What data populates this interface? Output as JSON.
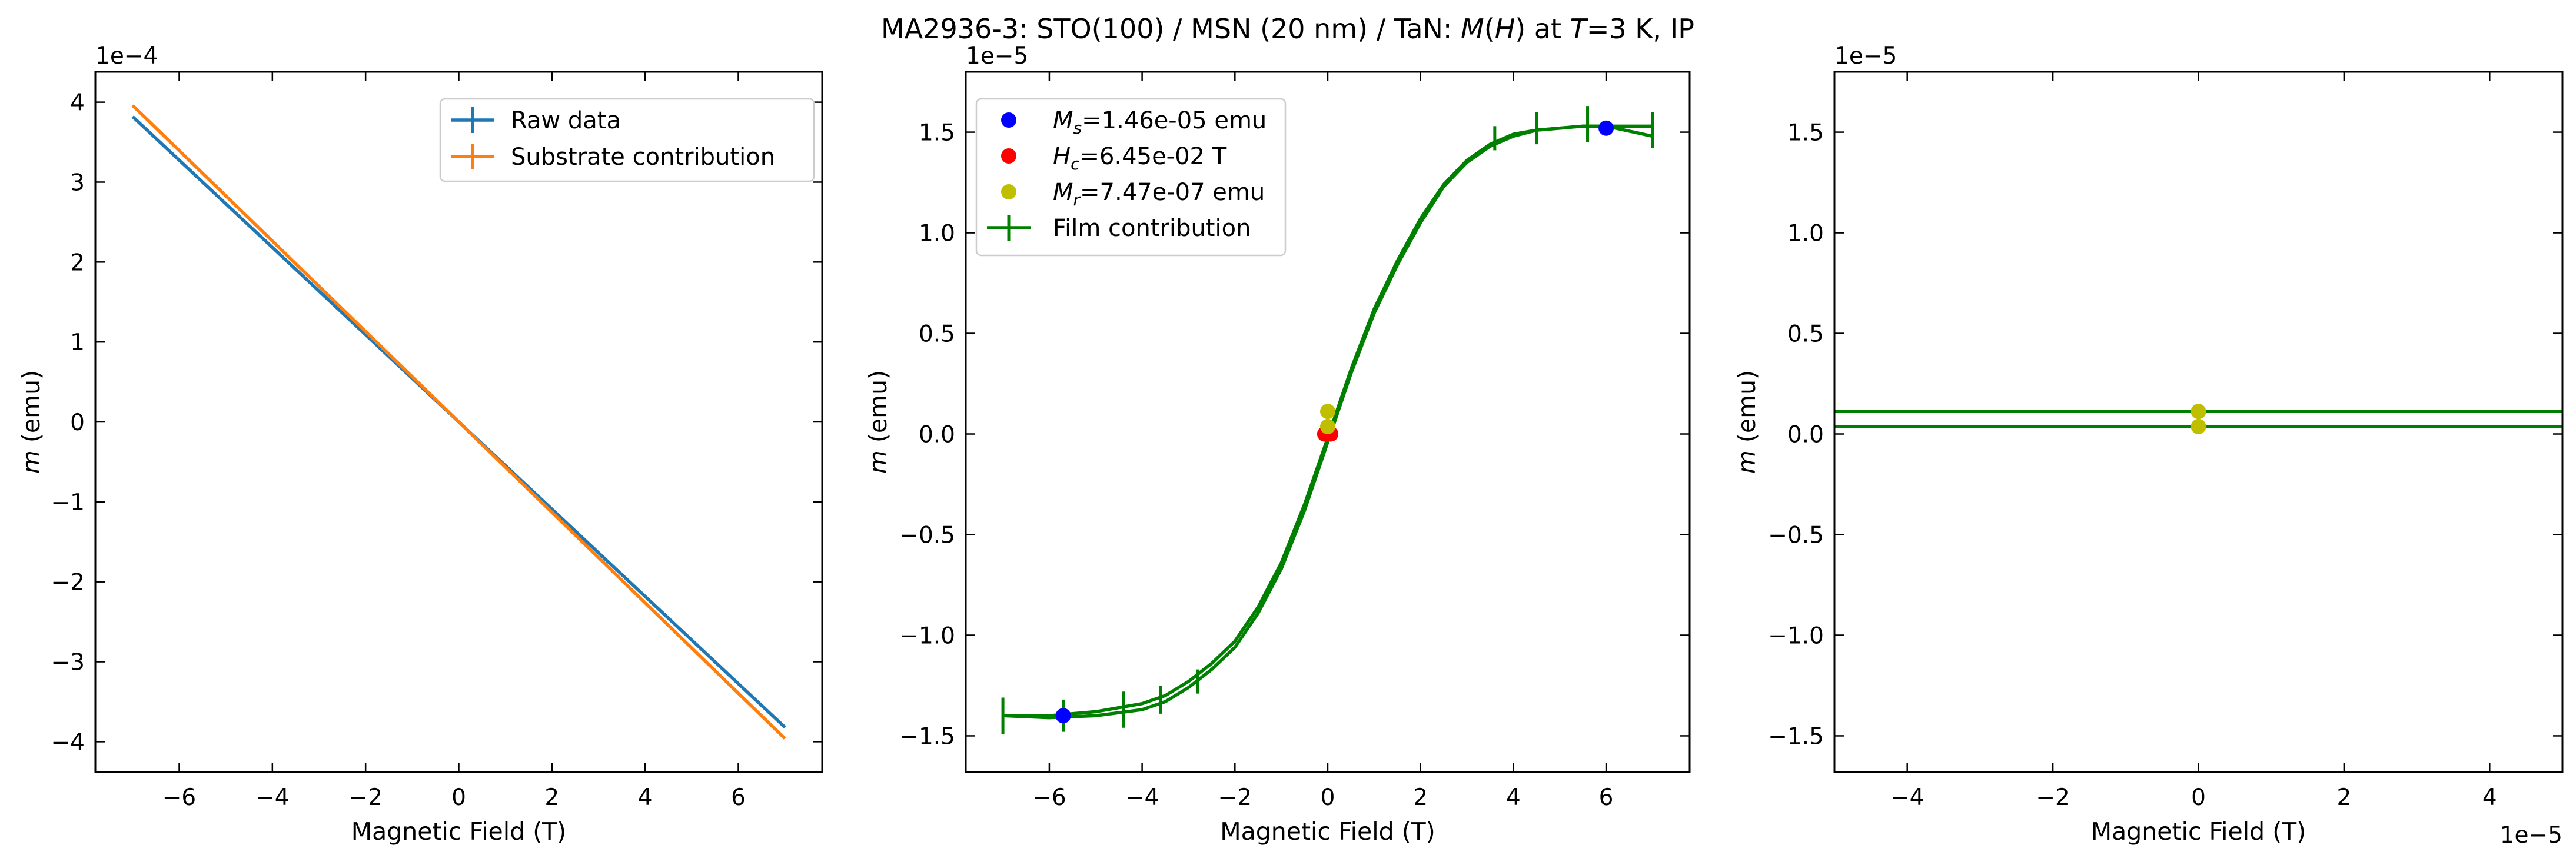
{
  "figure": {
    "title_prefix": "MA2936-3: STO(100)  / MSN (20 nm) / TaN: ",
    "title_m": "M",
    "title_h_paren_open": "(",
    "title_h": "H",
    "title_paren_close": ") at ",
    "title_t": "T",
    "title_suffix": "=3 K, IP"
  },
  "chart_data": [
    {
      "type": "line",
      "xlabel": "Magnetic Field (T)",
      "ylabel": "m (emu)",
      "y_offset_label": "1e−4",
      "xlim": [
        -7.8,
        7.8
      ],
      "ylim": [
        -4.38,
        4.38
      ],
      "xticks": [
        -6,
        -4,
        -2,
        0,
        2,
        4,
        6
      ],
      "yticks": [
        -4,
        -3,
        -2,
        -1,
        0,
        1,
        2,
        3,
        4
      ],
      "legend_position": "upper right",
      "series": [
        {
          "name": "Raw data",
          "color": "#1f77b4",
          "x": [
            -7,
            0,
            7
          ],
          "y": [
            3.82,
            0,
            -3.82
          ]
        },
        {
          "name": "Substrate contribution",
          "color": "#ff7f0e",
          "x": [
            -7,
            0,
            7
          ],
          "y": [
            3.96,
            0,
            -3.96
          ]
        }
      ]
    },
    {
      "type": "line",
      "xlabel": "Magnetic Field (T)",
      "ylabel": "m (emu)",
      "y_offset_label": "1e−5",
      "xlim": [
        -7.8,
        7.8
      ],
      "ylim": [
        -1.68,
        1.8
      ],
      "xticks": [
        -6,
        -4,
        -2,
        0,
        2,
        4,
        6
      ],
      "yticks": [
        -1.5,
        -1.0,
        -0.5,
        0.0,
        0.5,
        1.0,
        1.5
      ],
      "legend_position": "upper left",
      "markers": [
        {
          "label_sym": "M",
          "label_sub": "s",
          "label_rest": "=1.46e-05 emu",
          "color": "#0000ff",
          "points": [
            [
              -5.7,
              -1.4
            ],
            [
              6.0,
              1.52
            ]
          ]
        },
        {
          "label_sym": "H",
          "label_sub": "c",
          "label_rest": "=6.45e-02 T",
          "color": "#ff0000",
          "points": [
            [
              -0.065,
              0.0
            ],
            [
              0.065,
              0.0
            ]
          ]
        },
        {
          "label_sym": "M",
          "label_sub": "r",
          "label_rest": "=7.47e-07 emu",
          "color": "#bfbf00",
          "points": [
            [
              0,
              0.112
            ],
            [
              0,
              0.037
            ]
          ]
        }
      ],
      "series": [
        {
          "name": "Film contribution",
          "color": "#008000",
          "x": [
            -7,
            -6,
            -5,
            -4,
            -3.5,
            -3,
            -2.5,
            -2,
            -1.5,
            -1,
            -0.5,
            0,
            0.5,
            1,
            1.5,
            2,
            2.5,
            3,
            3.5,
            4,
            4.5,
            5,
            5.5,
            6,
            7
          ],
          "y_up": [
            -1.4,
            -1.4,
            -1.38,
            -1.34,
            -1.3,
            -1.23,
            -1.14,
            -1.03,
            -0.86,
            -0.64,
            -0.35,
            -0.02,
            0.32,
            0.62,
            0.86,
            1.07,
            1.24,
            1.36,
            1.44,
            1.49,
            1.51,
            1.52,
            1.53,
            1.53,
            1.53
          ],
          "y_down": [
            -1.4,
            -1.41,
            -1.4,
            -1.37,
            -1.33,
            -1.26,
            -1.17,
            -1.06,
            -0.89,
            -0.67,
            -0.38,
            -0.04,
            0.3,
            0.6,
            0.84,
            1.05,
            1.23,
            1.35,
            1.43,
            1.48,
            1.51,
            1.52,
            1.53,
            1.53,
            1.48
          ],
          "error_x": [
            -7,
            -5.7,
            -4.4,
            -3.6,
            -2.8,
            3.6,
            4.5,
            5.6,
            7
          ],
          "error_y": [
            -1.4,
            -1.4,
            -1.37,
            -1.32,
            -1.23,
            1.47,
            1.52,
            1.54,
            1.51
          ],
          "error_half": [
            0.09,
            0.08,
            0.09,
            0.07,
            0.06,
            0.06,
            0.08,
            0.09,
            0.09
          ]
        }
      ]
    },
    {
      "type": "line",
      "xlabel": "Magnetic Field (T)",
      "ylabel": "m (emu)",
      "y_offset_label": "1e−5",
      "x_offset_label": "1e−5",
      "xlim": [
        -5,
        5
      ],
      "ylim": [
        -1.68,
        1.8
      ],
      "xticks": [
        -4,
        -2,
        0,
        2,
        4
      ],
      "yticks": [
        -1.5,
        -1.0,
        -0.5,
        0.0,
        0.5,
        1.0,
        1.5
      ],
      "hlines": [
        {
          "y": 0.112,
          "color": "#008000"
        },
        {
          "y": 0.037,
          "color": "#008000"
        }
      ],
      "markers": [
        {
          "color": "#bfbf00",
          "points": [
            [
              0,
              0.112
            ],
            [
              0,
              0.037
            ]
          ]
        }
      ]
    }
  ]
}
